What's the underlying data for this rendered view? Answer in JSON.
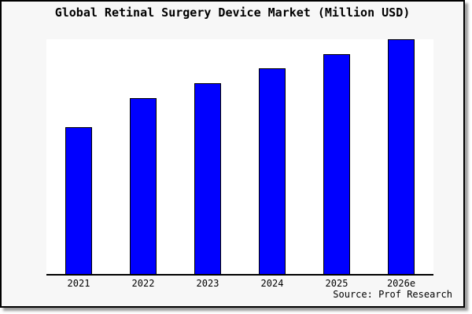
{
  "chart_data": {
    "type": "bar",
    "title": "Global Retinal Surgery Device Market (Million USD)",
    "categories": [
      "2021",
      "2022",
      "2023",
      "2024",
      "2025",
      "2026e"
    ],
    "values": [
      62.6,
      75.0,
      81.3,
      87.5,
      93.6,
      100
    ],
    "value_note": "y-axis has no tick labels; values are estimated bar heights relative to the tallest bar (2026e = 100)",
    "xlabel": "",
    "ylabel": "",
    "ylim": [
      0,
      100
    ],
    "grid": false,
    "legend": false,
    "source": "Source: Prof Research"
  },
  "colors": {
    "bar_fill": "#0000ff",
    "bar_border": "#000000",
    "axis": "#000000",
    "background": "#f7f7f7",
    "plot_background": "#ffffff",
    "frame_border": "#000000",
    "title_text": "#000000"
  }
}
